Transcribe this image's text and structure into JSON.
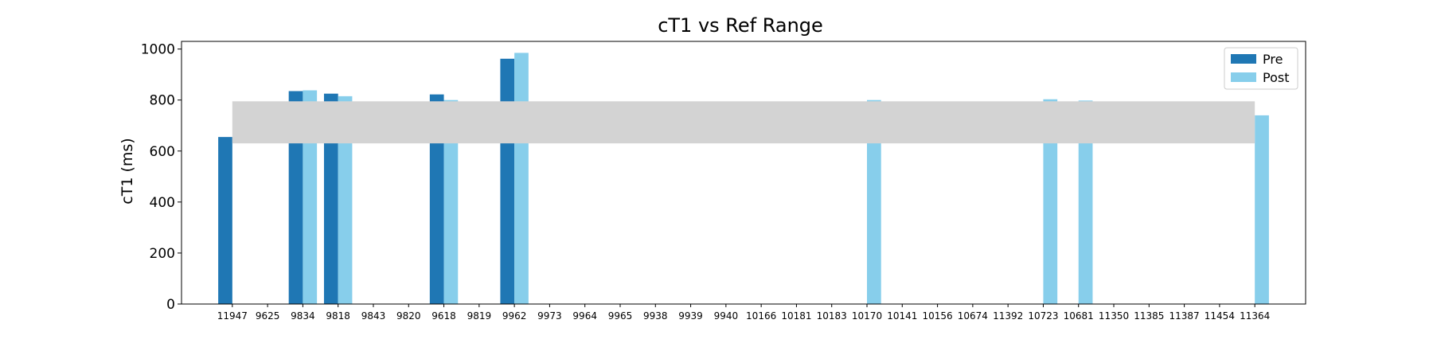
{
  "chart_data": {
    "type": "bar",
    "title": "cT1 vs Ref Range",
    "xlabel": "",
    "ylabel": "cT1 (ms)",
    "ylim": [
      0,
      1030
    ],
    "yticks": [
      0,
      200,
      400,
      600,
      800,
      1000
    ],
    "grid": false,
    "legend_position": "top-right",
    "reference_range": {
      "low": 630,
      "high": 795,
      "color": "#d3d3d3"
    },
    "categories": [
      "11947",
      "9625",
      "9834",
      "9818",
      "9843",
      "9820",
      "9618",
      "9819",
      "9962",
      "9973",
      "9964",
      "9965",
      "9938",
      "9939",
      "9940",
      "10166",
      "10181",
      "10183",
      "10170",
      "10141",
      "10156",
      "10674",
      "11392",
      "10723",
      "10681",
      "11350",
      "11385",
      "11387",
      "11454",
      "11364"
    ],
    "series": [
      {
        "name": "Pre",
        "color": "#1f77b4",
        "values": [
          655,
          null,
          835,
          825,
          null,
          null,
          822,
          null,
          962,
          null,
          null,
          null,
          null,
          null,
          null,
          null,
          null,
          null,
          null,
          null,
          null,
          null,
          null,
          null,
          null,
          null,
          null,
          null,
          null,
          null
        ]
      },
      {
        "name": "Post",
        "color": "#87ceeb",
        "values": [
          null,
          null,
          838,
          815,
          null,
          null,
          800,
          null,
          985,
          null,
          null,
          null,
          null,
          null,
          null,
          null,
          null,
          null,
          800,
          null,
          null,
          null,
          null,
          803,
          798,
          null,
          null,
          null,
          null,
          740
        ]
      }
    ]
  }
}
